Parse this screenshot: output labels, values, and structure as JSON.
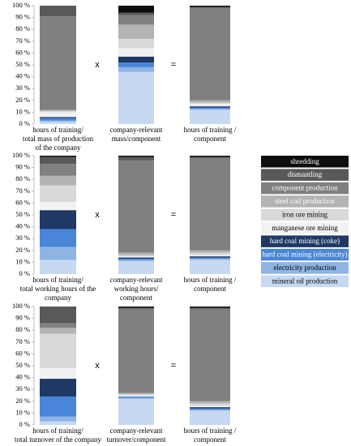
{
  "chart_data": [
    {
      "type": "stacked_bar",
      "xlabel": [
        "hours of training/",
        "total mass of production",
        "of the company"
      ],
      "values": [
        2,
        1,
        2,
        1,
        4,
        1,
        1,
        79,
        9,
        0
      ],
      "ylim": [
        0,
        100
      ],
      "yticks": [
        {
          "value": 0,
          "label": "0 %"
        },
        {
          "value": 10,
          "label": "10 %"
        },
        {
          "value": 20,
          "label": "20 %"
        },
        {
          "value": 30,
          "label": "30 %"
        },
        {
          "value": 40,
          "label": "40 %"
        },
        {
          "value": 50,
          "label": "50 %"
        },
        {
          "value": 60,
          "label": "60 %"
        },
        {
          "value": 70,
          "label": "70 %"
        },
        {
          "value": 80,
          "label": "80 %"
        },
        {
          "value": 90,
          "label": "90 %"
        },
        {
          "value": 100,
          "label": "100 %"
        }
      ]
    },
    {
      "type": "stacked_bar",
      "xlabel": [
        "company-relevant",
        "mass/component"
      ],
      "values": [
        44,
        4,
        4,
        5,
        7,
        8,
        12,
        8,
        2,
        6
      ],
      "ylim": [
        0,
        100
      ]
    },
    {
      "type": "stacked_bar",
      "xlabel": [
        "hours of training /",
        "component"
      ],
      "values": [
        12,
        1,
        1,
        1,
        2,
        1,
        2,
        78,
        1,
        1
      ],
      "ylim": [
        0,
        100
      ]
    },
    {
      "type": "stacked_bar",
      "xlabel": [
        "hours of training/",
        "total working hours of the",
        "company"
      ],
      "values": [
        12,
        11,
        15,
        16,
        7,
        14,
        8,
        10,
        6,
        1
      ],
      "ylim": [
        0,
        100
      ],
      "yticks": [
        {
          "value": 0,
          "label": "0 %"
        },
        {
          "value": 10,
          "label": "10 %"
        },
        {
          "value": 20,
          "label": "20 %"
        },
        {
          "value": 30,
          "label": "30 %"
        },
        {
          "value": 40,
          "label": "40 %"
        },
        {
          "value": 50,
          "label": "50 %"
        },
        {
          "value": 60,
          "label": "60 %"
        },
        {
          "value": 70,
          "label": "70 %"
        },
        {
          "value": 80,
          "label": "80 %"
        },
        {
          "value": 90,
          "label": "90 %"
        },
        {
          "value": 100,
          "label": "100 %"
        }
      ]
    },
    {
      "type": "stacked_bar",
      "xlabel": [
        "company-relevant",
        "working hours/",
        "component"
      ],
      "values": [
        11,
        1,
        1,
        1,
        1,
        1,
        2,
        78,
        3,
        1
      ],
      "ylim": [
        0,
        100
      ]
    },
    {
      "type": "stacked_bar",
      "xlabel": [
        "hours of training /",
        "component"
      ],
      "values": [
        12,
        1,
        1,
        1,
        1,
        2,
        2,
        78,
        1,
        1
      ],
      "ylim": [
        0,
        100
      ]
    },
    {
      "type": "stacked_bar",
      "xlabel": [
        "hours of training/",
        "total turnover of the company"
      ],
      "values": [
        3,
        4,
        17,
        15,
        9,
        29,
        5,
        4,
        14,
        0
      ],
      "ylim": [
        0,
        100
      ],
      "yticks": [
        {
          "value": 0,
          "label": "0 %"
        },
        {
          "value": 10,
          "label": "10 %"
        },
        {
          "value": 20,
          "label": "20 %"
        },
        {
          "value": 30,
          "label": "30 %"
        },
        {
          "value": 40,
          "label": "40 %"
        },
        {
          "value": 50,
          "label": "50 %"
        },
        {
          "value": 60,
          "label": "60 %"
        },
        {
          "value": 70,
          "label": "70 %"
        },
        {
          "value": 80,
          "label": "80 %"
        },
        {
          "value": 90,
          "label": "90 %"
        },
        {
          "value": 100,
          "label": "100 %"
        }
      ]
    },
    {
      "type": "stacked_bar",
      "xlabel": [
        "company-relevant",
        "turnover/component"
      ],
      "values": [
        22,
        1,
        1,
        0,
        1,
        1,
        1,
        71,
        1,
        1
      ],
      "ylim": [
        0,
        100
      ]
    },
    {
      "type": "stacked_bar",
      "xlabel": [
        "hours of training /",
        "component"
      ],
      "values": [
        12,
        1,
        1,
        1,
        1,
        2,
        2,
        78,
        1,
        1
      ],
      "ylim": [
        0,
        100
      ]
    }
  ],
  "operators": [
    [
      "x",
      "="
    ],
    [
      "x",
      "="
    ],
    [
      "x",
      "="
    ]
  ],
  "legend": {
    "series": [
      {
        "name": "mineral oil production",
        "color": "#c6d9f1",
        "text_color": "#000000"
      },
      {
        "name": "electricity production",
        "color": "#8eb4e3",
        "text_color": "#000000"
      },
      {
        "name": "hard coal mining (electricity)",
        "color": "#4a86d8",
        "text_color": "#ffffff"
      },
      {
        "name": "hard coal mining (coke)",
        "color": "#1f3864",
        "text_color": "#ffffff"
      },
      {
        "name": "manganese ore mining",
        "color": "#f2f2f2",
        "text_color": "#000000"
      },
      {
        "name": "iron ore mining",
        "color": "#d9d9d9",
        "text_color": "#000000"
      },
      {
        "name": "steel coil production",
        "color": "#b3b3b3",
        "text_color": "#ffffff"
      },
      {
        "name": "component production",
        "color": "#808080",
        "text_color": "#ffffff"
      },
      {
        "name": "dismantling",
        "color": "#595959",
        "text_color": "#ffffff"
      },
      {
        "name": "shredding",
        "color": "#0d0d0d",
        "text_color": "#ffffff"
      }
    ]
  }
}
